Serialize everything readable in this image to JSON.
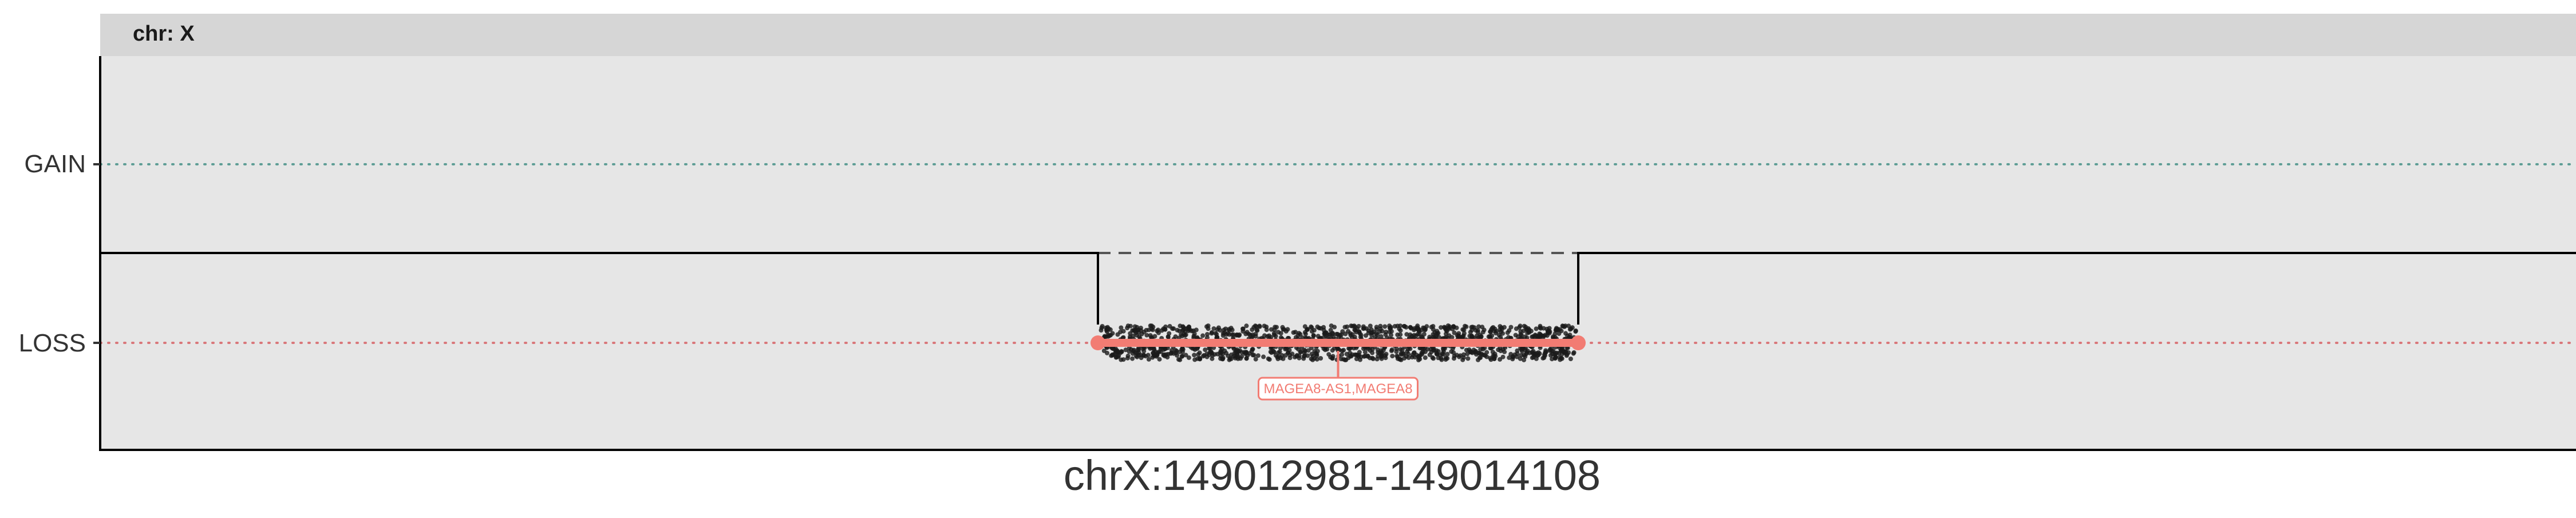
{
  "chart_data": {
    "type": "scatter",
    "facet_label": "chr: X",
    "xlabel": "chrX:149012981-149014108",
    "ylabel": "",
    "y_categories": [
      "GAIN",
      "LOSS"
    ],
    "y_reference_lines": [
      {
        "category": "GAIN",
        "color": "#5f9e96",
        "style": "dotted"
      },
      {
        "category": "LOSS",
        "color": "#d9777a",
        "style": "dotted"
      }
    ],
    "segment": {
      "status": "LOSS",
      "x_start_frac": 0.403,
      "x_end_frac": 0.597,
      "color": "#f27c73"
    },
    "copy_number_step": {
      "baseline_level": "normal",
      "drop_level": "LOSS",
      "dashed_baseline_over_drop": true
    },
    "gene_annotation": {
      "label": "MAGEA8-AS1,MAGEA8",
      "color": "#f27c73"
    },
    "point_cloud": {
      "count": 1400,
      "color": "#1a1a1a"
    },
    "grid": false,
    "legend": "none",
    "colors": {
      "panel_bg": "#e6e6e6",
      "strip_bg": "#d6d6d6",
      "axis": "#000000",
      "text": "#333333"
    }
  }
}
